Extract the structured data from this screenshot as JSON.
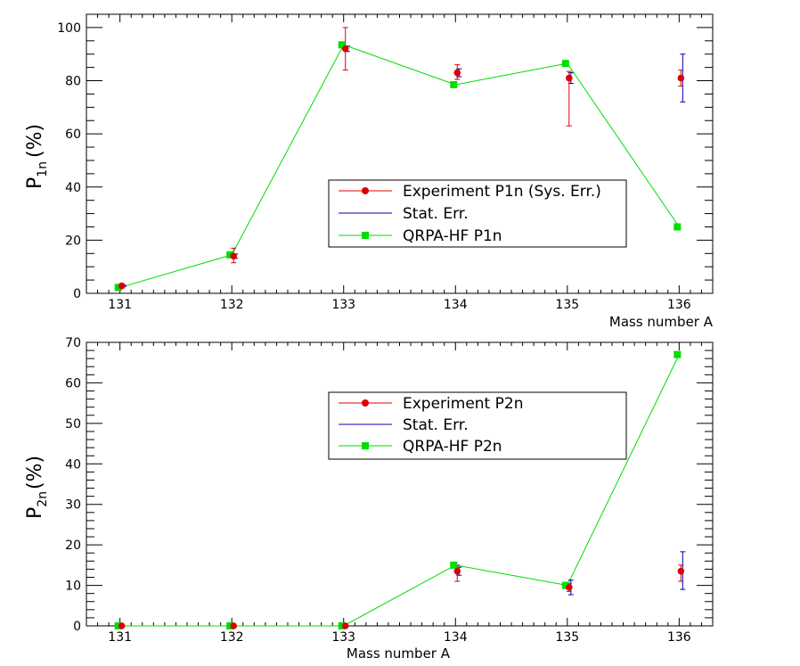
{
  "chart_data": [
    {
      "type": "scatter",
      "xlabel": "Mass number A",
      "ylabel_main": "P",
      "ylabel_sub": "1n",
      "ylabel_unit": "(%)",
      "x": [
        131,
        132,
        133,
        134,
        135,
        136
      ],
      "xlim": [
        130.7,
        136.3
      ],
      "ylim": [
        0,
        105
      ],
      "xticks": [
        "131",
        "132",
        "133",
        "134",
        "135",
        "136"
      ],
      "yticks": [
        "0",
        "20",
        "40",
        "60",
        "80",
        "100"
      ],
      "legend": [
        {
          "name": "Experiment P1n (Sys. Err.)",
          "color": "#dd0000",
          "marker": "circle"
        },
        {
          "name": "Stat. Err.",
          "color": "#0000aa",
          "marker": "none"
        },
        {
          "name": "QRPA-HF P1n",
          "color": "#00dd00",
          "marker": "square"
        }
      ],
      "series": [
        {
          "name": "Experiment P1n (Sys. Err.)",
          "color": "#dd0000",
          "y": [
            2.8,
            14,
            92,
            83,
            81,
            81
          ],
          "sys_err_low": [
            0.8,
            2.5,
            8,
            2.5,
            18,
            3
          ],
          "sys_err_high": [
            0.8,
            3,
            8,
            3,
            2.5,
            3
          ]
        },
        {
          "name": "Stat. Err.",
          "color": "#0000aa",
          "y": [
            2.8,
            14,
            92,
            83,
            81,
            81
          ],
          "stat_err_low": [
            0.3,
            0.8,
            1,
            1.5,
            2,
            9
          ],
          "stat_err_high": [
            0.3,
            0.8,
            1,
            1.5,
            2,
            9
          ]
        },
        {
          "name": "QRPA-HF P1n",
          "color": "#00dd00",
          "y": [
            2.2,
            14.5,
            93.5,
            78.5,
            86.5,
            25
          ]
        }
      ]
    },
    {
      "type": "scatter",
      "xlabel": "Mass number A",
      "ylabel_main": "P",
      "ylabel_sub": "2n",
      "ylabel_unit": "(%)",
      "x": [
        131,
        132,
        133,
        134,
        135,
        136
      ],
      "xlim": [
        130.7,
        136.3
      ],
      "ylim": [
        0,
        70
      ],
      "xticks": [
        "131",
        "132",
        "133",
        "134",
        "135",
        "136"
      ],
      "yticks": [
        "0",
        "10",
        "20",
        "30",
        "40",
        "50",
        "60",
        "70"
      ],
      "legend": [
        {
          "name": "Experiment P2n",
          "color": "#dd0000",
          "marker": "circle"
        },
        {
          "name": "Stat. Err.",
          "color": "#0000aa",
          "marker": "none"
        },
        {
          "name": "QRPA-HF P2n",
          "color": "#00dd00",
          "marker": "square"
        }
      ],
      "series": [
        {
          "name": "Experiment P2n",
          "color": "#dd0000",
          "y": [
            0,
            0,
            0,
            13.5,
            9.5,
            13.5
          ],
          "sys_err_low": [
            0,
            0,
            0,
            2.5,
            1,
            2.5
          ],
          "sys_err_high": [
            0,
            0,
            0,
            1.5,
            1,
            1.5
          ]
        },
        {
          "name": "Stat. Err.",
          "color": "#0000aa",
          "y": [
            0,
            0,
            0,
            13.5,
            9.5,
            13.5
          ],
          "stat_err_low": [
            0,
            0,
            0,
            1,
            1.8,
            4.5
          ],
          "stat_err_high": [
            0,
            0,
            0,
            1,
            1.8,
            4.8
          ]
        },
        {
          "name": "QRPA-HF P2n",
          "color": "#00dd00",
          "y": [
            0,
            0,
            0,
            15,
            10,
            67
          ]
        }
      ]
    }
  ]
}
